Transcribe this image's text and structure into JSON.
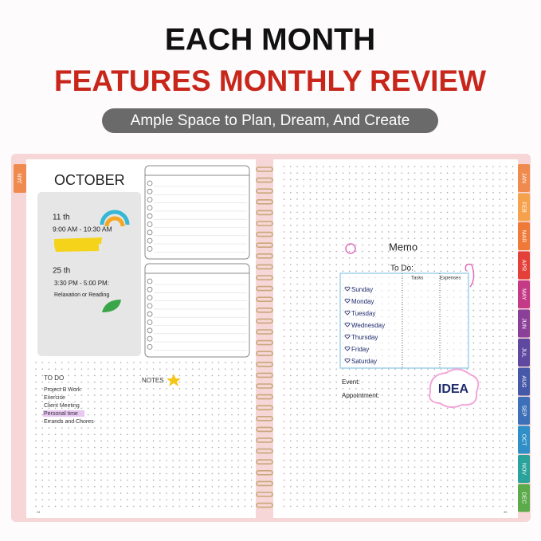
{
  "header": {
    "line1": "EACH MONTH",
    "line2": "FEATURES MONTHLY REVIEW",
    "tagline": "Ample Space to Plan, Dream, And Create"
  },
  "left_page": {
    "side_tab": "JAN",
    "month": "OCTOBER",
    "events": [
      {
        "date": "11 th",
        "time": "9:00 AM - 10:30 AM"
      },
      {
        "date": "25 th",
        "time": "3:30 PM - 5:00 PM:",
        "note": "Relaxation or Reading"
      }
    ],
    "todo": {
      "title": "TO DO",
      "items": [
        "Project B Work",
        "Exercise",
        "Client Meeting",
        "Personal time",
        "Errands and Chores"
      ]
    },
    "notes": "NOTES",
    "page_number": "34"
  },
  "right_page": {
    "memo": "Memo",
    "todo": "To Do:",
    "columns": [
      "Tasks",
      "Expenses"
    ],
    "days": [
      "Sunday",
      "Monday",
      "Tuesday",
      "Wednesday",
      "Thursday",
      "Friday",
      "Saturday"
    ],
    "event": "Event:",
    "appointment": "Appointment:",
    "idea": "IDEA",
    "page_number": "35",
    "tabs": [
      "JAN",
      "FEB",
      "MAR",
      "APR",
      "MAY",
      "JUN",
      "JUL",
      "AUG",
      "SEP",
      "OCT",
      "NOV",
      "DEC"
    ]
  }
}
